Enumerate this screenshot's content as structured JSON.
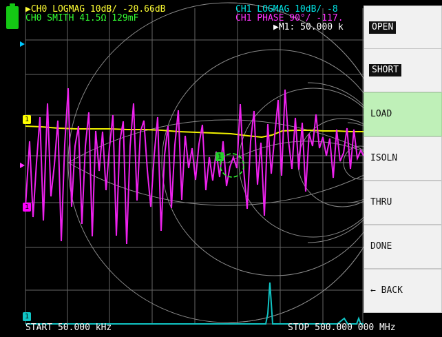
{
  "status_bar": {
    "battery_icon": "battery-icon"
  },
  "header": {
    "ch0_logmag": "▶CH0 LOGMAG 10dB/ -20.66dB",
    "ch0_smith": " CH0 SMITH 41.5Ω 129mF",
    "ch1_logmag": "CH1 LOGMAG 10dB/ -8",
    "ch1_phase": "CH1 PHASE 90°/ -117.",
    "marker": "▶M1: 50.000 k"
  },
  "menu": {
    "buttons": [
      {
        "label": "OPEN"
      },
      {
        "label": "SHORT"
      },
      {
        "label": "LOAD"
      },
      {
        "label": "ISOLN"
      },
      {
        "label": "THRU"
      },
      {
        "label": "DONE"
      },
      {
        "label": "← BACK"
      }
    ],
    "selected_index": 2
  },
  "footer": {
    "start": "START 50.000 kHz",
    "stop": "STOP 500.000 000 MHz"
  },
  "markers": {
    "yellow": "1",
    "magenta": "1",
    "green": "1",
    "cyan": "1"
  },
  "colors": {
    "background": "#000000",
    "grid": "#666666",
    "yellow": "#ffff00",
    "magenta": "#ff00ff",
    "green": "#33ff33",
    "cyan": "#00e5e5",
    "menu_bg": "#f1f1f1",
    "menu_selected": "#bff0b8",
    "white": "#ffffff"
  }
}
